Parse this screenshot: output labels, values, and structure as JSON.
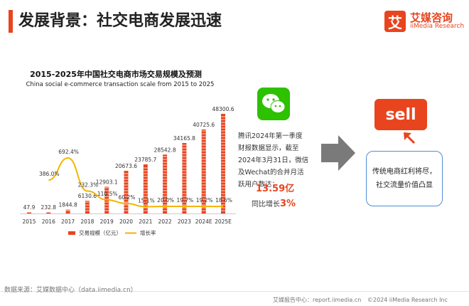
{
  "header": {
    "title": "发展背景：社交电商发展迅速"
  },
  "logo": {
    "mark": "艾",
    "cn": "艾媒咨询",
    "en": "iiMedia Research"
  },
  "chart_data": {
    "type": "bar",
    "title": "2015-2025年中国社交电商市场交易规模及预测",
    "subtitle": "China social e-commerce transaction scale from 2015 to 2025",
    "categories": [
      "2015",
      "2016",
      "2017",
      "2018",
      "2019",
      "2020",
      "2021",
      "2022",
      "2023",
      "2024E",
      "2025E"
    ],
    "series": [
      {
        "name": "交易规模（亿元）",
        "type": "bar",
        "color": "#e8441e",
        "values": [
          47.9,
          232.8,
          1844.8,
          6130.6,
          12903.1,
          20673.6,
          23785.7,
          28542.8,
          34165.8,
          40725.6,
          48300.6
        ],
        "labels": [
          "47.9",
          "232.8",
          "1844.8",
          "6130.6",
          "12903.1",
          "20673.6",
          "23785.7",
          "28542.8",
          "34165.8",
          "40725.6",
          "48300.6"
        ]
      },
      {
        "name": "增长率",
        "type": "line",
        "color": "#f5b400",
        "values": [
          null,
          386.0,
          692.4,
          232.3,
          110.5,
          60.2,
          15.1,
          20.0,
          19.7,
          19.2,
          18.6
        ],
        "labels": [
          "",
          "386.0%",
          "692.4%",
          "232.3%",
          "110.5%",
          "60.2%",
          "15.1%",
          "20.0%",
          "19.7%",
          "19.2%",
          "18.6%"
        ]
      }
    ],
    "legend": "bottom"
  },
  "wechat_icon": "wechat-icon",
  "note": "腾讯2024年第一季度财报数据显示，截至2024年3月31日，微信及Wechat的合并月活跃用户数达：",
  "mau": "13.59亿",
  "growth_prefix": "同比增长",
  "growth_value": "3%",
  "sell": "sell",
  "bubble": "传统电商红利将尽，社交流量价值凸显",
  "source": "数据来源：艾媒数据中心（data.iimedia.cn）",
  "footer": {
    "left": "艾媒报告中心：report.iimedia.cn",
    "right": "©2024  iiMedia Research Inc"
  }
}
